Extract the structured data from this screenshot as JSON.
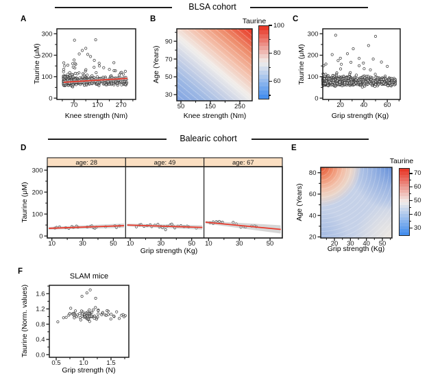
{
  "sections": {
    "blsa": "BLSA cohort",
    "balearic": "Balearic cohort"
  },
  "colors": {
    "trend_red": "#e8392b",
    "point_stroke": "#3c3c3c",
    "axis": "#1a1a1a",
    "strip_fill": "#fbdfc2",
    "ci_gray": "#b5b5b5",
    "heat_red": "#e73020",
    "heat_white": "#f1eeeb",
    "heat_blue": "#3e8aee"
  },
  "chart_data": {
    "panel_a": {
      "type": "scatter",
      "panel_label": "A",
      "section": "BLSA cohort",
      "xlabel": "Knee strength (Nm)",
      "ylabel": "Taurine (μM)",
      "xlim": [
        -3,
        332
      ],
      "ylim": [
        -6,
        323
      ],
      "xticks": {
        "values": [
          70,
          170,
          270
        ],
        "labels": [
          "70",
          "170",
          "270"
        ],
        "minor": [
          20,
          120,
          220,
          320
        ]
      },
      "yticks": {
        "values": [
          0,
          100,
          200,
          300
        ],
        "labels": [
          "0",
          "100",
          "200",
          "300"
        ],
        "minor": [
          50,
          150,
          250
        ]
      },
      "trend": {
        "x": [
          26,
          297
        ],
        "y": [
          74,
          92
        ],
        "band": [
          2,
          2.8
        ]
      },
      "cloud": {
        "seed": 7,
        "n": 560,
        "x_range": [
          25,
          295
        ],
        "x_pow": 2.0,
        "y_center": 80,
        "y_sigma": 0.24,
        "tail_p": 0.06,
        "tail_add": 85,
        "y_clamp": [
          38,
          205
        ]
      },
      "outliers": [
        [
          72,
          270
        ],
        [
          162,
          272
        ],
        [
          120,
          232
        ],
        [
          105,
          222
        ],
        [
          92,
          206
        ],
        [
          128,
          204
        ],
        [
          70,
          178
        ],
        [
          140,
          194
        ],
        [
          156,
          176
        ],
        [
          178,
          150
        ],
        [
          196,
          142
        ],
        [
          220,
          134
        ],
        [
          240,
          128
        ],
        [
          262,
          108
        ],
        [
          272,
          62
        ],
        [
          281,
          90
        ],
        [
          288,
          125
        ]
      ]
    },
    "panel_b": {
      "type": "heatmap",
      "panel_label": "B",
      "section": "BLSA cohort",
      "xlabel": "Knee strength (Nm)",
      "ylabel": "Age (Years)",
      "xlim": [
        36,
        292
      ],
      "ylim": [
        23,
        104
      ],
      "xticks": {
        "values": [
          50,
          150,
          250
        ],
        "labels": [
          "50",
          "150",
          "250"
        ],
        "minor": [
          100,
          200
        ]
      },
      "yticks": {
        "values": [
          30,
          50,
          70,
          90
        ],
        "labels": [
          "30",
          "50",
          "70",
          "90"
        ],
        "minor": [
          40,
          60,
          80,
          100
        ]
      },
      "surface": {
        "pattern": "diagonal gradient, taurine rises with age and knee strength",
        "corners": {
          "top_left": 83,
          "top_right": 100,
          "bottom_left": 50,
          "bottom_right": 74
        }
      },
      "colorbar": {
        "title": "Taurine",
        "range": [
          48,
          100
        ],
        "bands": 18,
        "ticks": [
          100,
          80,
          60
        ],
        "labels": [
          "100",
          "80",
          "60"
        ],
        "minor": [
          90,
          70,
          50
        ]
      }
    },
    "panel_c": {
      "type": "scatter",
      "panel_label": "C",
      "section": "BLSA cohort",
      "xlabel": "Grip strength (Kg)",
      "ylabel": "Taurine (μM)",
      "xlim": [
        5,
        71
      ],
      "ylim": [
        -6,
        323
      ],
      "xticks": {
        "values": [
          20,
          40,
          60
        ],
        "labels": [
          "20",
          "40",
          "60"
        ],
        "minor": [
          10,
          30,
          50,
          70
        ]
      },
      "yticks": {
        "values": [
          0,
          100,
          200,
          300
        ],
        "labels": [
          "0",
          "100",
          "200",
          "300"
        ],
        "minor": [
          50,
          150,
          250
        ]
      },
      "cloud": {
        "seed": 13,
        "n": 620,
        "x_range": [
          5,
          67
        ],
        "x_pow": 1.45,
        "y_center": 77,
        "y_sigma": 0.25,
        "tail_p": 0.05,
        "tail_add": 80,
        "y_clamp": [
          34,
          200
        ]
      },
      "outliers": [
        [
          16,
          293
        ],
        [
          50,
          288
        ],
        [
          31,
          230
        ],
        [
          44,
          245
        ],
        [
          13,
          203
        ],
        [
          26,
          207
        ],
        [
          36,
          185
        ],
        [
          48,
          182
        ],
        [
          55,
          168
        ],
        [
          20,
          186
        ],
        [
          29,
          167
        ],
        [
          60,
          148
        ],
        [
          64,
          64
        ],
        [
          66,
          62
        ],
        [
          62,
          70
        ]
      ]
    },
    "panel_d": {
      "type": "facet_scatter",
      "panel_label": "D",
      "section": "Balearic cohort",
      "xlabel": "Grip strength (Kg)",
      "ylabel": "Taurine (μM)",
      "xlim": [
        7,
        58
      ],
      "ylim": [
        -9,
        316
      ],
      "xticks": {
        "values": [
          10,
          30,
          50
        ],
        "labels": [
          "10",
          "30",
          "50"
        ],
        "minor": [
          20,
          40
        ]
      },
      "yticks": {
        "values": [
          0,
          100,
          200,
          300
        ],
        "labels": [
          "0",
          "100",
          "200",
          "300"
        ],
        "minor": [
          50,
          150,
          250
        ]
      },
      "facets": [
        {
          "label": "age: 28",
          "points": [
            [
              12,
              36
            ],
            [
              13,
              39
            ],
            [
              15,
              41
            ],
            [
              19,
              38
            ],
            [
              21,
              35
            ],
            [
              23,
              43
            ],
            [
              24,
              39
            ],
            [
              26,
              45
            ],
            [
              27,
              40
            ],
            [
              33,
              41
            ],
            [
              35,
              44
            ],
            [
              36,
              46
            ],
            [
              37,
              38
            ],
            [
              38,
              36
            ],
            [
              39,
              40
            ],
            [
              45,
              42
            ],
            [
              51,
              47
            ],
            [
              52,
              39
            ],
            [
              54,
              46
            ]
          ],
          "trend": {
            "x": [
              8,
              57
            ],
            "y": [
              35,
              47
            ],
            "band": [
              2,
              3.2
            ]
          }
        },
        {
          "label": "age: 49",
          "points": [
            [
              14,
              42
            ],
            [
              16,
              50
            ],
            [
              17,
              52
            ],
            [
              19,
              44
            ],
            [
              21,
              47
            ],
            [
              23,
              51
            ],
            [
              24,
              43
            ],
            [
              26,
              49
            ],
            [
              28,
              53
            ],
            [
              29,
              41
            ],
            [
              30,
              44
            ],
            [
              31,
              38
            ],
            [
              32,
              43
            ],
            [
              33,
              29
            ],
            [
              34,
              45
            ],
            [
              36,
              50
            ],
            [
              37,
              54
            ],
            [
              38,
              45
            ],
            [
              39,
              37
            ],
            [
              41,
              45
            ],
            [
              43,
              47
            ],
            [
              45,
              43
            ],
            [
              47,
              45
            ],
            [
              48,
              42
            ],
            [
              53,
              36
            ]
          ],
          "trend": {
            "x": [
              8,
              57
            ],
            "y": [
              50,
              39
            ],
            "band": [
              2,
              3.2
            ]
          }
        },
        {
          "label": "age: 67",
          "points": [
            [
              11,
              60
            ],
            [
              13,
              57
            ],
            [
              13,
              64
            ],
            [
              15,
              65
            ],
            [
              16,
              62
            ],
            [
              17,
              66
            ],
            [
              18,
              60
            ],
            [
              19,
              63
            ],
            [
              26,
              62
            ],
            [
              28,
              55
            ],
            [
              31,
              40
            ],
            [
              33,
              43
            ],
            [
              34,
              41
            ],
            [
              38,
              45
            ],
            [
              40,
              46
            ],
            [
              41,
              43
            ]
          ],
          "trend": {
            "x": [
              8,
              57
            ],
            "y": [
              63,
              30
            ],
            "band": [
              2,
              6
            ]
          }
        }
      ]
    },
    "panel_e": {
      "type": "heatmap",
      "panel_label": "E",
      "section": "Balearic cohort",
      "xlabel": "Grip strength (Kg)",
      "ylabel": "Age (Years)",
      "xlim": [
        11.4,
        56
      ],
      "ylim": [
        19,
        85
      ],
      "xticks": {
        "values": [
          20,
          30,
          40,
          50
        ],
        "labels": [
          "20",
          "30",
          "40",
          "50"
        ],
        "minor": [
          15,
          25,
          35,
          45,
          55
        ]
      },
      "yticks": {
        "values": [
          20,
          40,
          60,
          80
        ],
        "labels": [
          "20",
          "40",
          "60",
          "80"
        ],
        "minor": [
          30,
          50,
          70
        ]
      },
      "surface": {
        "pattern": "saddle: high taurine at old age + low grip, light blue elsewhere",
        "corners": {
          "top_left": 72,
          "top_right": 33,
          "bottom_left": 38,
          "bottom_right": 50
        }
      },
      "colorbar": {
        "title": "Taurine",
        "range": [
          25,
          74
        ],
        "bands": 22,
        "ticks": [
          70,
          60,
          50,
          40,
          30
        ],
        "labels": [
          "70",
          "60",
          "50",
          "40",
          "30"
        ],
        "minor": [
          65,
          55,
          45,
          35
        ]
      }
    },
    "panel_f": {
      "type": "scatter",
      "panel_label": "F",
      "section": "SLAM mice",
      "title": "SLAM mice",
      "xlabel": "Grip strength (N)",
      "ylabel": "Taurine (Norm. values)",
      "xlim": [
        0.375,
        1.825
      ],
      "ylim": [
        -0.07,
        1.82
      ],
      "xticks": {
        "values": [
          0.5,
          1.0,
          1.5
        ],
        "labels": [
          "0.5",
          "1.0",
          "1.5"
        ],
        "minor": [
          0.75,
          1.25,
          1.75
        ]
      },
      "yticks": {
        "values": [
          0,
          0.4,
          0.8,
          1.2,
          1.6
        ],
        "labels": [
          "0.0",
          "0.4",
          "0.8",
          "1.2",
          "1.6"
        ],
        "minor": [
          0.2,
          0.6,
          1.0,
          1.4,
          1.8
        ]
      },
      "cloud": {
        "seed": 21,
        "n": 78,
        "x_gauss": [
          1.12,
          0.42
        ],
        "x_range": [
          0.5,
          1.76
        ],
        "y_center": 1.04,
        "y_sigma": 0.11,
        "tail_p": 0.05,
        "tail_add": 0.35,
        "y_clamp": [
          0.68,
          1.6
        ]
      },
      "outliers": [
        [
          1.12,
          1.7
        ],
        [
          1.06,
          1.62
        ],
        [
          0.97,
          1.53
        ],
        [
          1.22,
          1.48
        ],
        [
          0.53,
          0.86
        ],
        [
          1.72,
          1.05
        ],
        [
          1.65,
          0.95
        ]
      ]
    }
  }
}
